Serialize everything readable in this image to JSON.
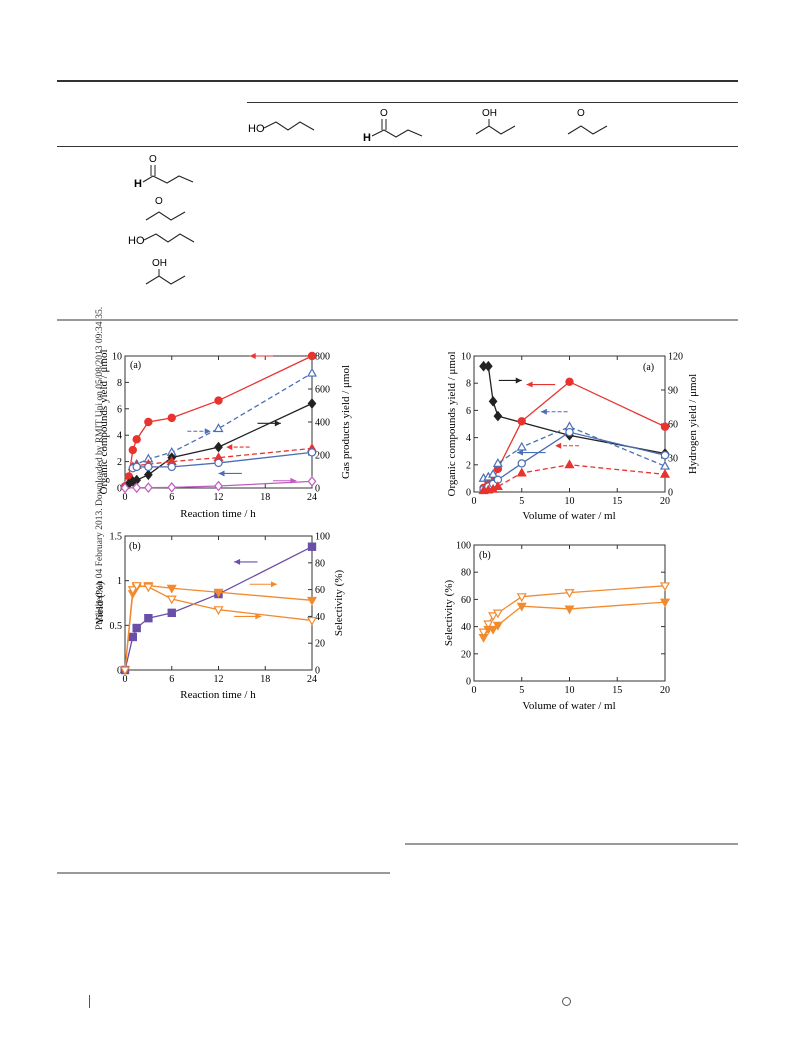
{
  "sidebar_note": "Published on 04 February 2013. Downloaded by RMIT Uni on 05/08/2013 09:34:35.",
  "table": {
    "header_structures": [
      "1-butanol",
      "butanal",
      "2-butanol",
      "2-butanone"
    ],
    "row_structures": [
      "butanal",
      "2-butanone",
      "1-butanol",
      "2-butanol"
    ],
    "atom_labels": {
      "oxygen": "O",
      "hydrogen": "H",
      "hydroxyl_prefix": "HO",
      "hydroxyl": "OH"
    }
  },
  "figures": {
    "left_a": {
      "panel_label": "(a)",
      "xlabel": "Reaction time / h",
      "ylabel_left": "Organic compounds yield / μmol",
      "ylabel_right": "Gas products yield / μmol",
      "xticks": [
        "0",
        "6",
        "12",
        "18",
        "24"
      ],
      "yticks_left": [
        "0",
        "2",
        "4",
        "6",
        "8",
        "10"
      ],
      "yticks_right": [
        "0",
        "200",
        "400",
        "600",
        "800"
      ]
    },
    "left_b": {
      "panel_label": "(b)",
      "xlabel": "Reaction time / h",
      "ylabel_left": "Yield (%)",
      "ylabel_right": "Selectivity (%)",
      "xticks": [
        "0",
        "6",
        "12",
        "18",
        "24"
      ],
      "yticks_left": [
        "0",
        "0.5",
        "1",
        "1.5"
      ],
      "yticks_right": [
        "0",
        "20",
        "40",
        "60",
        "80",
        "100"
      ]
    },
    "right_a": {
      "panel_label": "(a)",
      "xlabel": "Volume of water / ml",
      "ylabel_left": "Organic compounds yield / μmol",
      "ylabel_right": "Hydrogen yield / μmol",
      "xticks": [
        "0",
        "5",
        "10",
        "15",
        "20"
      ],
      "yticks_left": [
        "0",
        "2",
        "4",
        "6",
        "8",
        "10"
      ],
      "yticks_right": [
        "0",
        "30",
        "60",
        "90",
        "120"
      ]
    },
    "right_b": {
      "panel_label": "(b)",
      "xlabel": "Volume of water / ml",
      "ylabel_left": "Selectivity (%)",
      "xticks": [
        "0",
        "5",
        "10",
        "15",
        "20"
      ],
      "yticks_left": [
        "0",
        "20",
        "40",
        "60",
        "80",
        "100"
      ]
    }
  },
  "chart_data": [
    {
      "id": "left_a",
      "type": "line",
      "xlim": [
        0,
        24
      ],
      "ylim": [
        0,
        10
      ],
      "y2lim": [
        0,
        800
      ],
      "series": [
        {
          "color": "#e8332f",
          "marker": "circle",
          "filled": true,
          "dash": false,
          "axis": "right",
          "x": [
            0,
            0.5,
            1,
            1.5,
            3,
            6,
            12,
            24
          ],
          "y": [
            10,
            70,
            230,
            295,
            400,
            425,
            530,
            800
          ]
        },
        {
          "color": "#4a6fb5",
          "marker": "triangle",
          "filled": false,
          "dash": true,
          "axis": "left",
          "x": [
            1,
            1.5,
            3,
            6,
            12,
            24
          ],
          "y": [
            1.6,
            1.8,
            2.2,
            2.7,
            4.5,
            8.7
          ]
        },
        {
          "color": "#222222",
          "marker": "diamond",
          "filled": true,
          "dash": false,
          "axis": "left",
          "x": [
            0.5,
            1,
            1.5,
            3,
            6,
            12,
            24
          ],
          "y": [
            0.3,
            0.5,
            0.6,
            1.0,
            2.3,
            3.1,
            6.4
          ]
        },
        {
          "color": "#e8332f",
          "marker": "triangle",
          "filled": true,
          "dash": true,
          "axis": "left",
          "x": [
            1,
            1.5,
            3,
            6,
            12,
            24
          ],
          "y": [
            1.6,
            1.7,
            1.8,
            2.0,
            2.3,
            3.0
          ]
        },
        {
          "color": "#4a6fb5",
          "marker": "circle",
          "filled": false,
          "dash": false,
          "axis": "left",
          "x": [
            1,
            1.5,
            3,
            6,
            12,
            24
          ],
          "y": [
            1.5,
            1.6,
            1.6,
            1.6,
            1.9,
            2.7
          ]
        },
        {
          "color": "#c05bc0",
          "marker": "diamond",
          "filled": false,
          "dash": false,
          "axis": "left",
          "x": [
            0,
            1.5,
            3,
            6,
            12,
            24
          ],
          "y": [
            0,
            0.02,
            0.03,
            0.05,
            0.15,
            0.5
          ]
        }
      ],
      "arrows": [
        {
          "x0": 19,
          "x1": 16,
          "y": 10.0,
          "color": "#e8332f",
          "dash": false
        },
        {
          "x0": 8,
          "x1": 11,
          "y": 4.3,
          "color": "#4a6fb5",
          "dash": true
        },
        {
          "x0": 17,
          "x1": 20,
          "y": 4.9,
          "color": "#222222",
          "dash": false
        },
        {
          "x0": 16,
          "x1": 13,
          "y": 3.1,
          "color": "#e8332f",
          "dash": true
        },
        {
          "x0": 15,
          "x1": 12,
          "y": 1.1,
          "color": "#4a6fb5",
          "dash": false
        },
        {
          "x0": 19,
          "x1": 22,
          "y": 0.55,
          "color": "#c05bc0",
          "dash": false
        }
      ]
    },
    {
      "id": "left_b",
      "type": "line",
      "xlim": [
        0,
        24
      ],
      "ylim": [
        0,
        1.5
      ],
      "y2lim": [
        0,
        100
      ],
      "series": [
        {
          "color": "#6a4fa8",
          "marker": "square",
          "filled": true,
          "dash": false,
          "axis": "left",
          "x": [
            0,
            1,
            1.5,
            3,
            6,
            12,
            24
          ],
          "y": [
            0,
            0.37,
            0.47,
            0.58,
            0.64,
            0.85,
            1.38
          ]
        },
        {
          "color": "#f28a2e",
          "marker": "tri-down",
          "filled": true,
          "dash": false,
          "axis": "right",
          "x": [
            0,
            1,
            1.5,
            3,
            6,
            12,
            24
          ],
          "y": [
            0,
            57,
            62,
            63,
            61,
            58,
            52
          ]
        },
        {
          "color": "#f28a2e",
          "marker": "tri-down",
          "filled": false,
          "dash": false,
          "axis": "right",
          "x": [
            0,
            1,
            1.5,
            3,
            6,
            12,
            24
          ],
          "y": [
            0,
            60,
            63,
            62,
            53,
            45,
            37
          ]
        }
      ],
      "arrows": [
        {
          "x0": 17,
          "x1": 14,
          "y": 1.21,
          "color": "#6a4fa8",
          "dash": false
        },
        {
          "x0": 16,
          "x1": 19.5,
          "y": 0.96,
          "color": "#f28a2e",
          "dash": false
        },
        {
          "x0": 14,
          "x1": 17.5,
          "y": 0.6,
          "color": "#f28a2e",
          "dash": false
        }
      ]
    },
    {
      "id": "right_a",
      "type": "line",
      "xlim": [
        0,
        20
      ],
      "ylim": [
        0,
        10
      ],
      "y2lim": [
        0,
        120
      ],
      "series": [
        {
          "color": "#222222",
          "marker": "diamond",
          "filled": true,
          "dash": false,
          "axis": "right",
          "x": [
            1,
            1.5,
            2,
            2.5,
            10,
            20
          ],
          "y": [
            111,
            111,
            80,
            67,
            50,
            34
          ]
        },
        {
          "color": "#e8332f",
          "marker": "circle",
          "filled": true,
          "dash": false,
          "axis": "left",
          "x": [
            1,
            1.5,
            2,
            2.5,
            5,
            10,
            20
          ],
          "y": [
            0.3,
            0.6,
            0.8,
            1.7,
            5.2,
            8.1,
            4.8
          ]
        },
        {
          "color": "#4a6fb5",
          "marker": "triangle",
          "filled": false,
          "dash": true,
          "axis": "left",
          "x": [
            1,
            1.5,
            2,
            2.5,
            5,
            10,
            20
          ],
          "y": [
            1.0,
            1.1,
            1.3,
            2.1,
            3.3,
            4.8,
            1.9
          ]
        },
        {
          "color": "#4a6fb5",
          "marker": "circle",
          "filled": false,
          "dash": false,
          "axis": "left",
          "x": [
            1,
            1.5,
            2,
            2.5,
            5,
            10,
            20
          ],
          "y": [
            0.2,
            0.4,
            0.6,
            0.9,
            2.1,
            4.4,
            2.7
          ]
        },
        {
          "color": "#e8332f",
          "marker": "triangle",
          "filled": true,
          "dash": true,
          "axis": "left",
          "x": [
            1,
            1.5,
            2,
            2.5,
            5,
            10,
            20
          ],
          "y": [
            0.1,
            0.15,
            0.2,
            0.4,
            1.4,
            2.0,
            1.3
          ]
        }
      ],
      "arrows": [
        {
          "x0": 2.6,
          "x1": 5,
          "y": 8.2,
          "color": "#222222",
          "dash": false
        },
        {
          "x0": 8.5,
          "x1": 5.5,
          "y": 7.9,
          "color": "#e8332f",
          "dash": false
        },
        {
          "x0": 9.8,
          "x1": 7,
          "y": 5.9,
          "color": "#4a6fb5",
          "dash": true
        },
        {
          "x0": 7.5,
          "x1": 4.5,
          "y": 2.9,
          "color": "#4a6fb5",
          "dash": false
        },
        {
          "x0": 11,
          "x1": 8.5,
          "y": 3.4,
          "color": "#e8332f",
          "dash": true
        }
      ]
    },
    {
      "id": "right_b",
      "type": "line",
      "xlim": [
        0,
        20
      ],
      "ylim": [
        0,
        100
      ],
      "series": [
        {
          "color": "#f28a2e",
          "marker": "tri-down",
          "filled": false,
          "dash": false,
          "axis": "left",
          "x": [
            1,
            1.5,
            2,
            2.5,
            5,
            10,
            20
          ],
          "y": [
            36,
            42,
            48,
            50,
            62,
            65,
            70
          ]
        },
        {
          "color": "#f28a2e",
          "marker": "tri-down",
          "filled": true,
          "dash": false,
          "axis": "left",
          "x": [
            1,
            1.5,
            2,
            2.5,
            5,
            10,
            20
          ],
          "y": [
            32,
            38,
            38,
            41,
            55,
            53,
            58
          ]
        }
      ],
      "arrows": []
    }
  ]
}
